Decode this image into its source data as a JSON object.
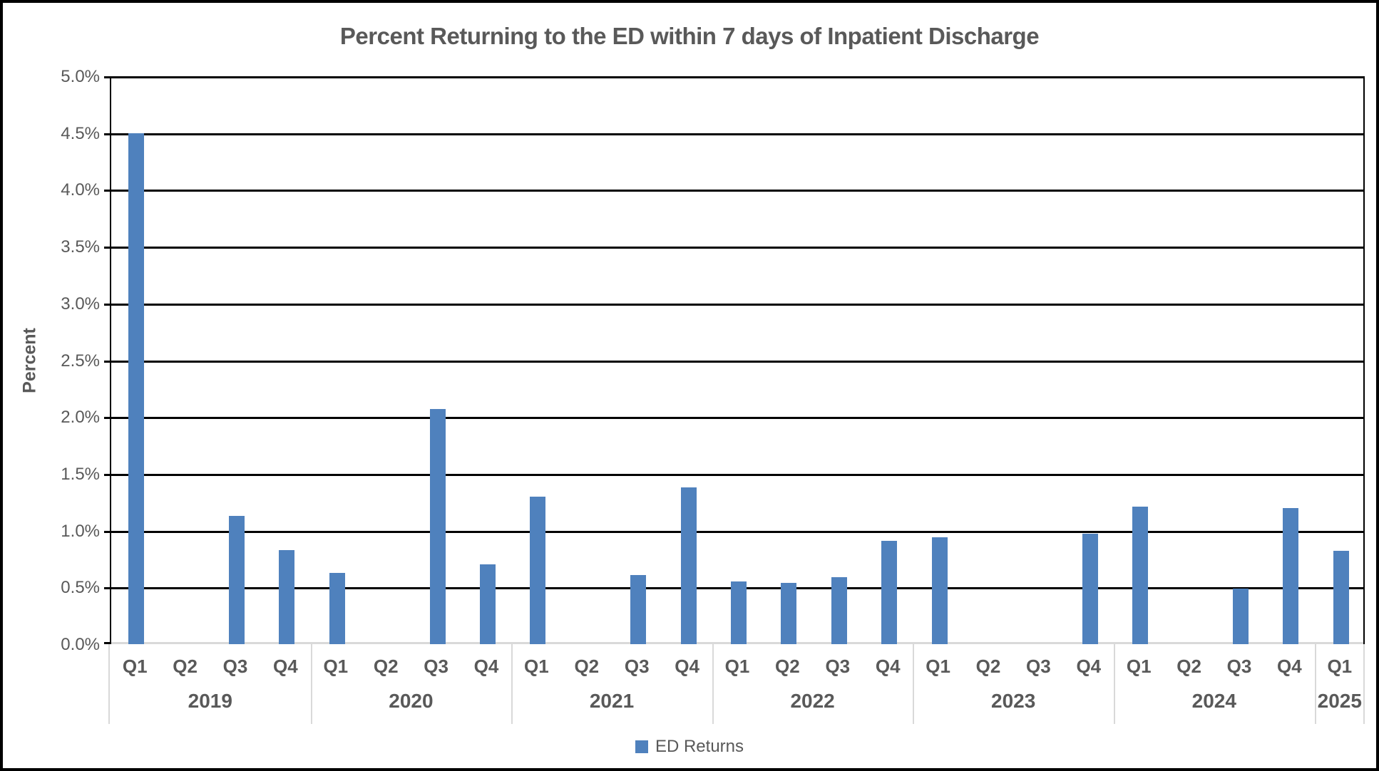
{
  "title": "Percent Returning to the ED within 7 days of Inpatient Discharge",
  "ylabel": "Percent",
  "legend": {
    "label": "ED Returns",
    "swatch_color": "#4f81bd"
  },
  "colors": {
    "bar": "#4f81bd",
    "text": "#595959",
    "gridline": "#000000",
    "baseline": "#d9d9d9",
    "separator": "#d9d9d9"
  },
  "chart_data": {
    "type": "bar",
    "title": "Percent Returning to the ED within 7 days of Inpatient Discharge",
    "xlabel": "",
    "ylabel": "Percent",
    "ylim": [
      0,
      5.0
    ],
    "ytick_step": 0.5,
    "ytick_labels": [
      "5.0%",
      "4.5%",
      "4.0%",
      "3.5%",
      "3.0%",
      "2.5%",
      "2.0%",
      "1.5%",
      "1.0%",
      "0.5%",
      "0.0%"
    ],
    "grid": "horizontal",
    "legend_position": "bottom",
    "legend_entries": [
      "ED Returns"
    ],
    "series_name": "ED Returns",
    "groups": [
      {
        "year": "2019",
        "quarters": [
          "Q1",
          "Q2",
          "Q3",
          "Q4"
        ],
        "values": [
          4.5,
          0,
          1.13,
          0.83
        ]
      },
      {
        "year": "2020",
        "quarters": [
          "Q1",
          "Q2",
          "Q3",
          "Q4"
        ],
        "values": [
          0.63,
          0,
          2.07,
          0.7
        ]
      },
      {
        "year": "2021",
        "quarters": [
          "Q1",
          "Q2",
          "Q3",
          "Q4"
        ],
        "values": [
          1.3,
          0,
          0.61,
          1.38
        ]
      },
      {
        "year": "2022",
        "quarters": [
          "Q1",
          "Q2",
          "Q3",
          "Q4"
        ],
        "values": [
          0.55,
          0.54,
          0.59,
          0.91
        ]
      },
      {
        "year": "2023",
        "quarters": [
          "Q1",
          "Q2",
          "Q3",
          "Q4"
        ],
        "values": [
          0.94,
          0,
          0,
          0.97
        ]
      },
      {
        "year": "2024",
        "quarters": [
          "Q1",
          "Q2",
          "Q3",
          "Q4"
        ],
        "values": [
          1.21,
          0,
          0.49,
          1.2
        ]
      },
      {
        "year": "2025",
        "quarters": [
          "Q1"
        ],
        "values": [
          0.82
        ]
      }
    ]
  }
}
